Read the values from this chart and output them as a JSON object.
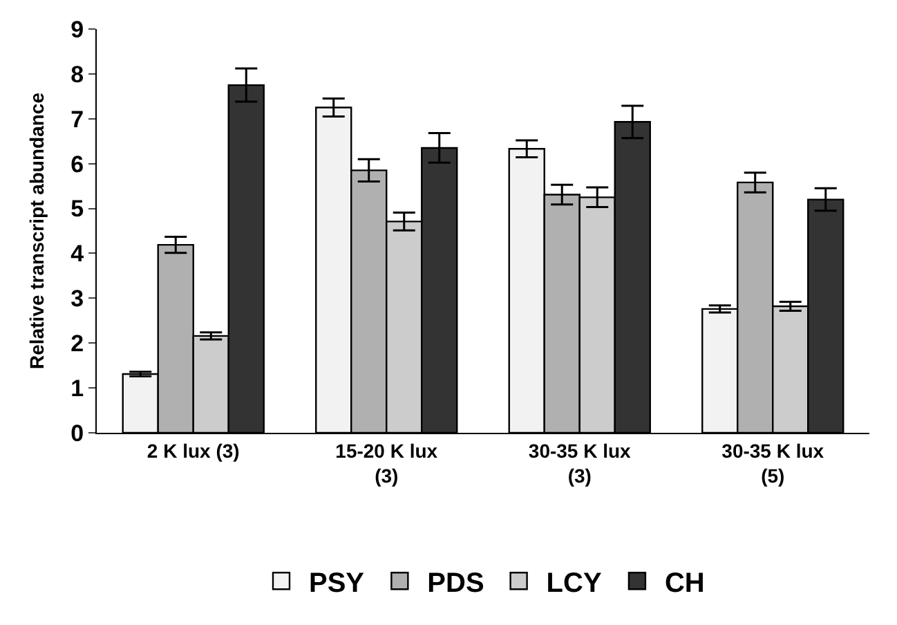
{
  "chart_data": {
    "type": "bar",
    "ylabel": "Relative transcript abundance",
    "categories": [
      "2 K lux (3)",
      "15-20 K lux\n(3)",
      "30-35 K lux\n(3)",
      "30-35 K lux\n(5)"
    ],
    "series": [
      {
        "name": "PSY",
        "color": "#f2f2f2",
        "values": [
          1.31,
          7.25,
          6.33,
          2.76
        ],
        "errors": [
          0.05,
          0.2,
          0.19,
          0.08
        ]
      },
      {
        "name": "PDS",
        "color": "#b0b0b0",
        "values": [
          4.19,
          5.85,
          5.31,
          5.58
        ],
        "errors": [
          0.18,
          0.25,
          0.22,
          0.22
        ]
      },
      {
        "name": "LCY",
        "color": "#cccccc",
        "values": [
          2.16,
          4.71,
          5.25,
          2.82
        ],
        "errors": [
          0.08,
          0.2,
          0.22,
          0.1
        ]
      },
      {
        "name": "CH",
        "color": "#333333",
        "values": [
          7.75,
          6.35,
          6.93,
          5.2
        ],
        "errors": [
          0.37,
          0.33,
          0.36,
          0.25
        ]
      }
    ],
    "ylim": [
      0,
      9
    ],
    "yticks": [
      0,
      1,
      2,
      3,
      4,
      5,
      6,
      7,
      8,
      9
    ],
    "legend": "bottom"
  }
}
